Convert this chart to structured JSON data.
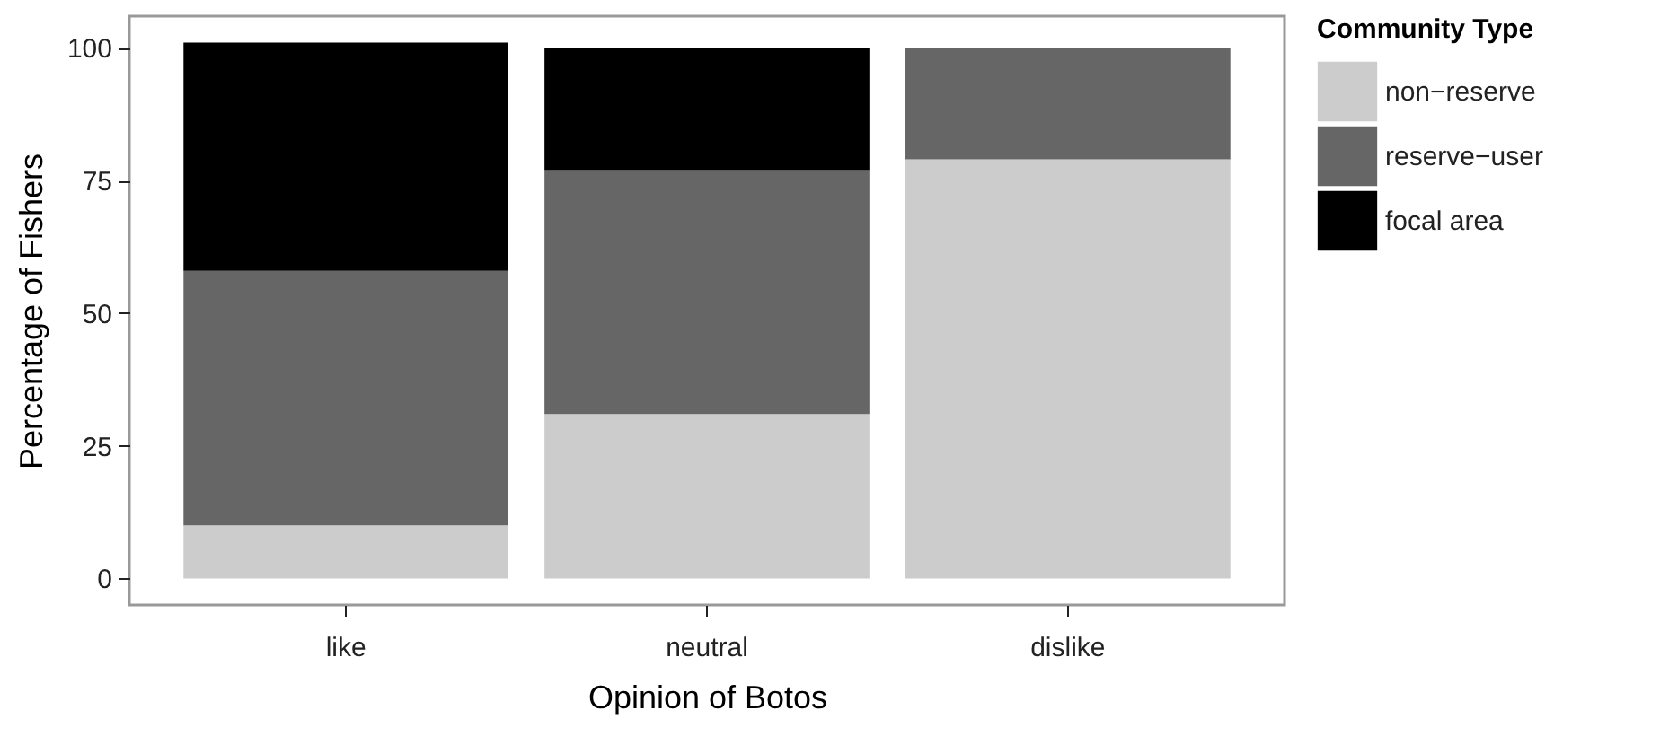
{
  "chart_data": {
    "type": "bar",
    "stacked": true,
    "xlabel": "Opinion of Botos",
    "ylabel": "Percentage of Fishers",
    "legend_title": "Community Type",
    "legend": "right",
    "grid": false,
    "categories": [
      "like",
      "neutral",
      "dislike"
    ],
    "ylim": [
      -5,
      106
    ],
    "yticks": [
      0,
      25,
      50,
      75,
      100
    ],
    "series": [
      {
        "name": "non−reserve",
        "color": "#cccccc",
        "values": [
          10,
          31,
          79
        ]
      },
      {
        "name": "reserve−user",
        "color": "#666666",
        "values": [
          48,
          46,
          21
        ]
      },
      {
        "name": "focal area",
        "color": "#000000",
        "values": [
          43,
          23,
          null
        ]
      }
    ]
  }
}
